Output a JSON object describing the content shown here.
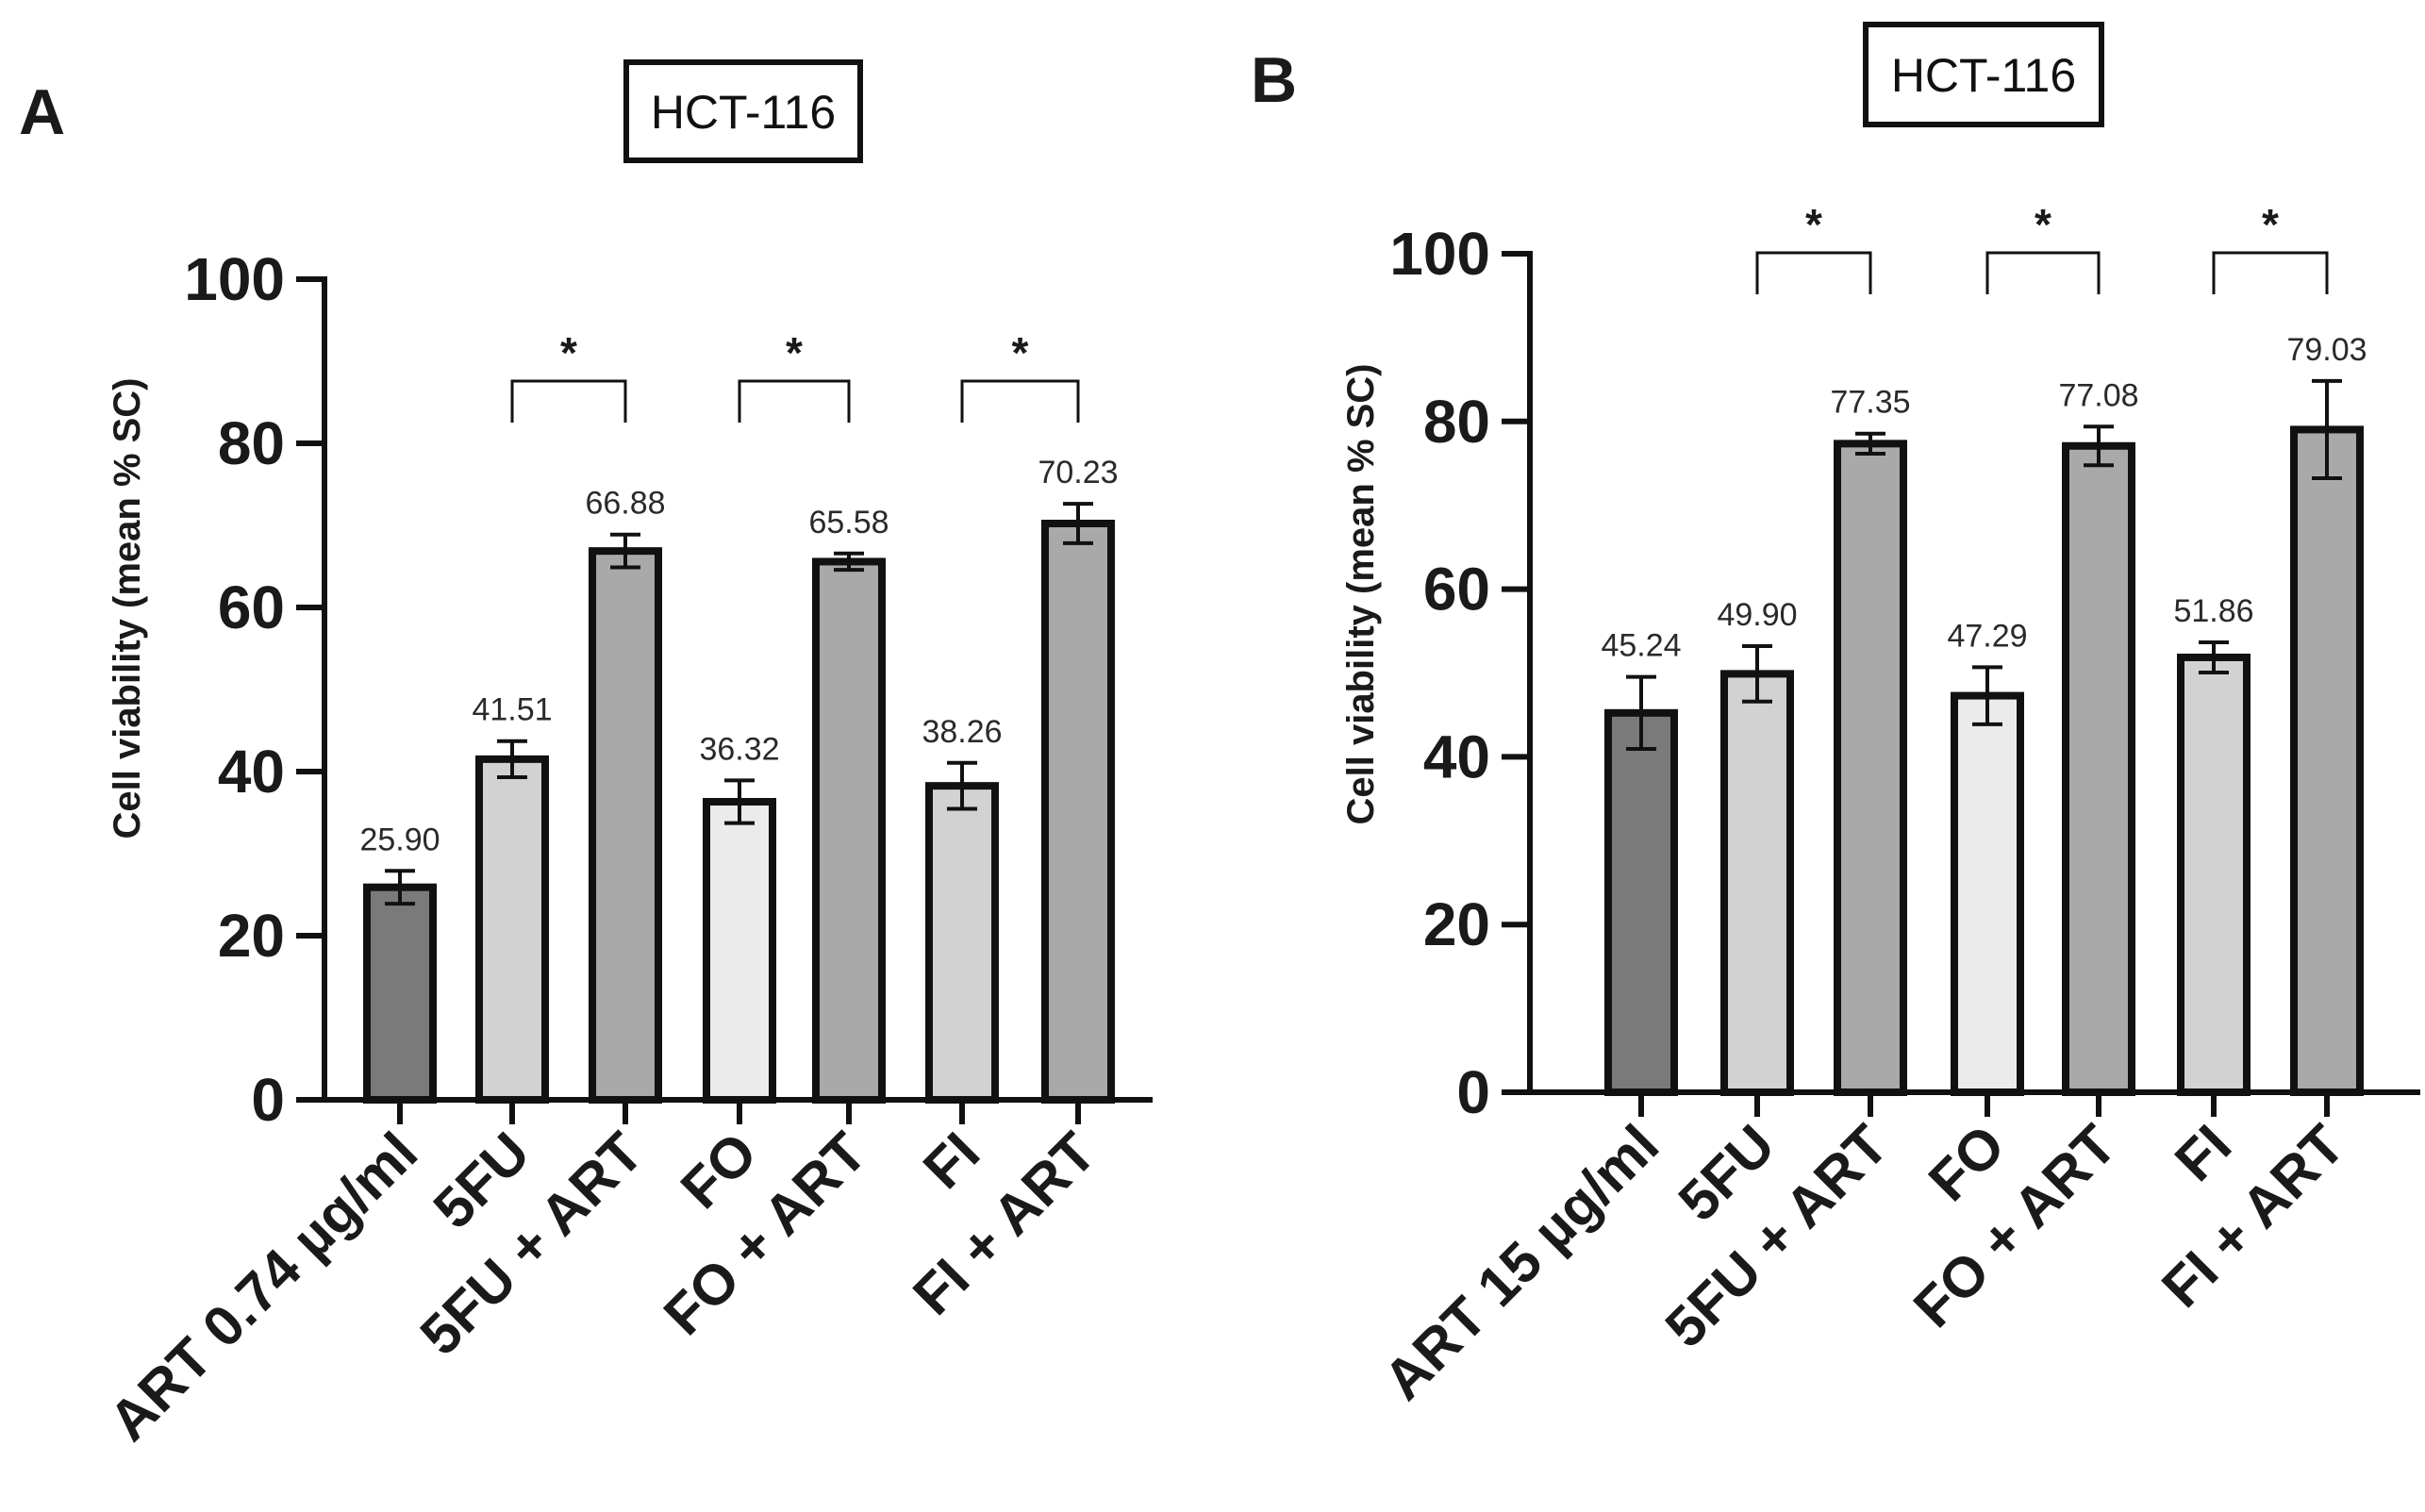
{
  "chart_data": [
    {
      "type": "bar",
      "panel": "A",
      "title": "HCT-116",
      "xlabel": "",
      "ylabel": "Cell viability (mean % SC)",
      "ylim": [
        0,
        100
      ],
      "yticks": [
        0,
        20,
        40,
        60,
        80,
        100
      ],
      "categories": [
        "ART 0.74 µg/ml",
        "5FU",
        "5FU + ART",
        "FO",
        "FO + ART",
        "FI",
        "FI + ART"
      ],
      "values": [
        25.9,
        41.51,
        66.88,
        36.32,
        65.58,
        38.26,
        70.23
      ],
      "errors": [
        2.0,
        2.2,
        2.0,
        2.6,
        1.0,
        2.8,
        2.4
      ],
      "value_labels": [
        "25.90",
        "41.51",
        "66.88",
        "36.32",
        "65.58",
        "38.26",
        "70.23"
      ],
      "bar_colors": [
        "#7a7a7a",
        "#d2d2d2",
        "#a9a9a9",
        "#ebebeb",
        "#a9a9a9",
        "#d2d2d2",
        "#a9a9a9"
      ],
      "significance": [
        {
          "from": 1,
          "to": 2,
          "label": "*"
        },
        {
          "from": 3,
          "to": 4,
          "label": "*"
        },
        {
          "from": 5,
          "to": 6,
          "label": "*"
        }
      ]
    },
    {
      "type": "bar",
      "panel": "B",
      "title": "HCT-116",
      "xlabel": "",
      "ylabel": "Cell viability (mean % SC)",
      "ylim": [
        0,
        100
      ],
      "yticks": [
        0,
        20,
        40,
        60,
        80,
        100
      ],
      "categories": [
        "ART 15 µg/ml",
        "5FU",
        "5FU + ART",
        "FO",
        "FO + ART",
        "FI",
        "FI + ART"
      ],
      "values": [
        45.24,
        49.9,
        77.35,
        47.29,
        77.08,
        51.86,
        79.03
      ],
      "errors": [
        4.3,
        3.3,
        1.2,
        3.4,
        2.3,
        1.8,
        5.8
      ],
      "value_labels": [
        "45.24",
        "49.90",
        "77.35",
        "47.29",
        "77.08",
        "51.86",
        "79.03"
      ],
      "bar_colors": [
        "#7a7a7a",
        "#d2d2d2",
        "#a9a9a9",
        "#ebebeb",
        "#a9a9a9",
        "#d2d2d2",
        "#a9a9a9"
      ],
      "significance": [
        {
          "from": 1,
          "to": 2,
          "label": "*"
        },
        {
          "from": 3,
          "to": 4,
          "label": "*"
        },
        {
          "from": 5,
          "to": 6,
          "label": "*"
        }
      ]
    }
  ]
}
